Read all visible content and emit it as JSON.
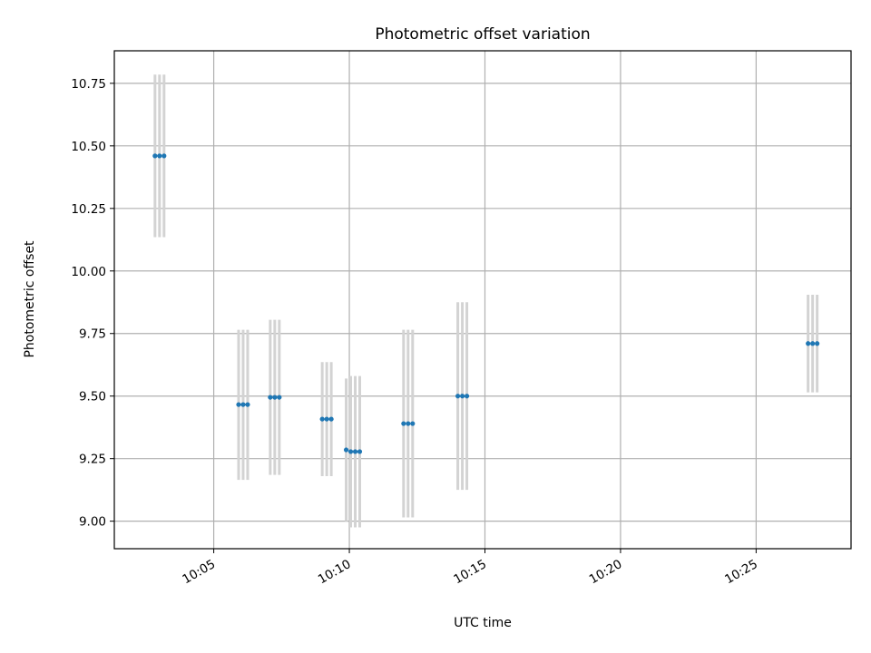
{
  "chart_data": {
    "type": "scatter",
    "title": "Photometric offset variation",
    "xlabel": "UTC time",
    "ylabel": "Photometric offset",
    "x_is_time": true,
    "xlim": [
      "10:01:20",
      "10:28:30"
    ],
    "ylim": [
      8.89,
      10.88
    ],
    "xticks": [
      "10:05",
      "10:10",
      "10:15",
      "10:20",
      "10:25"
    ],
    "yticks": [
      9.0,
      9.25,
      9.5,
      9.75,
      10.0,
      10.25,
      10.5,
      10.75
    ],
    "ytick_labels": [
      "9.00",
      "9.25",
      "9.50",
      "9.75",
      "10.00",
      "10.25",
      "10.50",
      "10.75"
    ],
    "grid": true,
    "series": [
      {
        "points": [
          {
            "x": "10:02:50",
            "y": 10.46,
            "err_low": 10.135,
            "err_high": 10.785
          },
          {
            "x": "10:03:00",
            "y": 10.46,
            "err_low": 10.135,
            "err_high": 10.785
          },
          {
            "x": "10:03:10",
            "y": 10.46,
            "err_low": 10.135,
            "err_high": 10.785
          },
          {
            "x": "10:05:55",
            "y": 9.466,
            "err_low": 9.165,
            "err_high": 9.765
          },
          {
            "x": "10:06:05",
            "y": 9.466,
            "err_low": 9.165,
            "err_high": 9.765
          },
          {
            "x": "10:06:15",
            "y": 9.466,
            "err_low": 9.165,
            "err_high": 9.765
          },
          {
            "x": "10:07:05",
            "y": 9.495,
            "err_low": 9.185,
            "err_high": 9.805
          },
          {
            "x": "10:07:15",
            "y": 9.495,
            "err_low": 9.185,
            "err_high": 9.805
          },
          {
            "x": "10:07:25",
            "y": 9.495,
            "err_low": 9.185,
            "err_high": 9.805
          },
          {
            "x": "10:09:00",
            "y": 9.408,
            "err_low": 9.18,
            "err_high": 9.636
          },
          {
            "x": "10:09:10",
            "y": 9.408,
            "err_low": 9.18,
            "err_high": 9.636
          },
          {
            "x": "10:09:20",
            "y": 9.408,
            "err_low": 9.18,
            "err_high": 9.636
          },
          {
            "x": "10:09:53",
            "y": 9.285,
            "err_low": 9.0,
            "err_high": 9.57
          },
          {
            "x": "10:10:03",
            "y": 9.278,
            "err_low": 8.975,
            "err_high": 9.58
          },
          {
            "x": "10:10:13",
            "y": 9.278,
            "err_low": 8.975,
            "err_high": 9.58
          },
          {
            "x": "10:10:23",
            "y": 9.278,
            "err_low": 8.975,
            "err_high": 9.58
          },
          {
            "x": "10:12:00",
            "y": 9.39,
            "err_low": 9.015,
            "err_high": 9.765
          },
          {
            "x": "10:12:10",
            "y": 9.39,
            "err_low": 9.015,
            "err_high": 9.765
          },
          {
            "x": "10:12:20",
            "y": 9.39,
            "err_low": 9.015,
            "err_high": 9.765
          },
          {
            "x": "10:14:00",
            "y": 9.5,
            "err_low": 9.125,
            "err_high": 9.875
          },
          {
            "x": "10:14:10",
            "y": 9.5,
            "err_low": 9.125,
            "err_high": 9.875
          },
          {
            "x": "10:14:20",
            "y": 9.5,
            "err_low": 9.125,
            "err_high": 9.875
          },
          {
            "x": "10:26:55",
            "y": 9.71,
            "err_low": 9.515,
            "err_high": 9.905
          },
          {
            "x": "10:27:05",
            "y": 9.71,
            "err_low": 9.515,
            "err_high": 9.905
          },
          {
            "x": "10:27:15",
            "y": 9.71,
            "err_low": 9.515,
            "err_high": 9.905
          }
        ]
      }
    ],
    "colors": {
      "marker": "#1f77b4",
      "errorbar": "#d3d3d3",
      "grid": "#b0b0b0",
      "axes": "#000000"
    }
  }
}
